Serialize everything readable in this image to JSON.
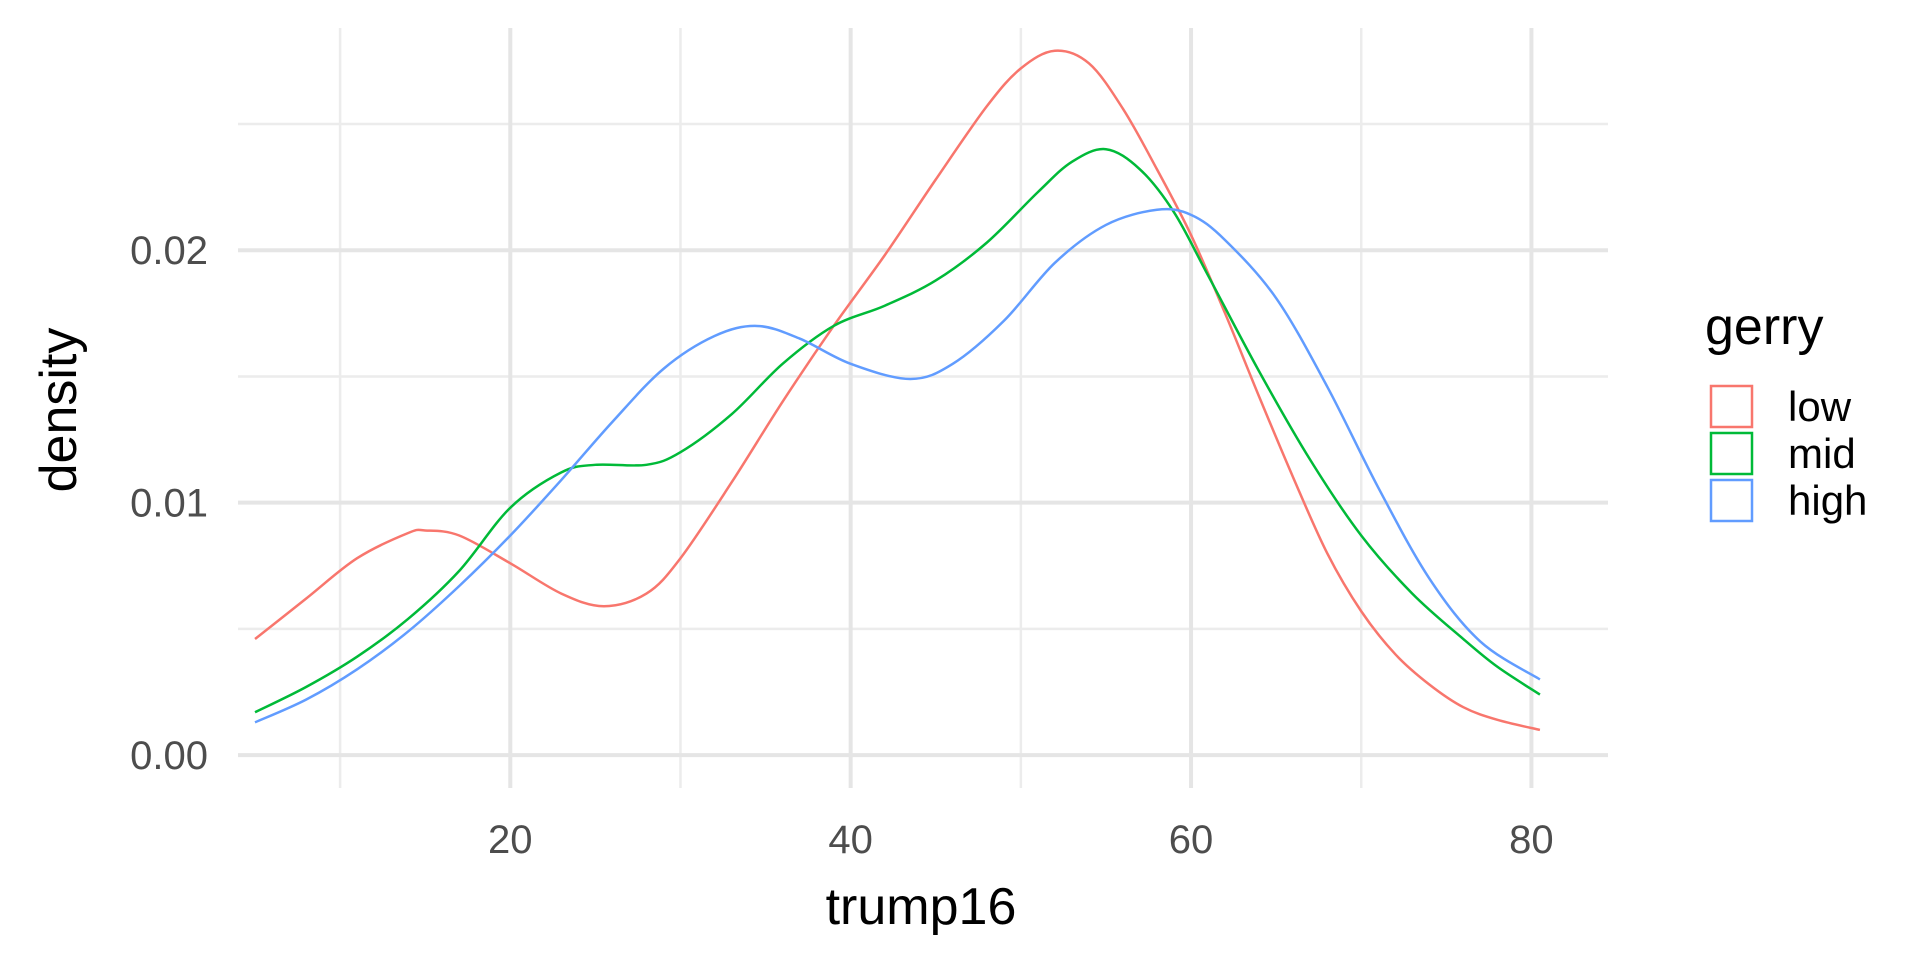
{
  "chart_data": {
    "type": "line",
    "subtype": "density",
    "title": "",
    "xlabel": "trump16",
    "ylabel": "density",
    "xlim": [
      4,
      84.5
    ],
    "ylim": [
      -0.0013,
      0.0288
    ],
    "x_ticks": [
      20,
      40,
      60,
      80
    ],
    "x_tick_labels": [
      "20",
      "40",
      "60",
      "80"
    ],
    "y_ticks": [
      0.0,
      0.01,
      0.02
    ],
    "y_tick_labels": [
      "0.00",
      "0.01",
      "0.02"
    ],
    "grid": true,
    "legend": {
      "title": "gerry",
      "position": "right"
    },
    "series": [
      {
        "name": "low",
        "color": "#F8766D",
        "x": [
          5,
          8,
          11,
          14,
          15,
          17,
          20,
          23,
          25.5,
          28,
          30,
          33,
          36,
          39,
          42,
          45,
          48,
          50,
          52,
          54,
          56,
          58,
          60,
          62,
          64,
          66,
          68,
          70,
          72,
          74,
          76,
          78,
          80.5
        ],
        "y": [
          0.0046,
          0.0062,
          0.0078,
          0.0088,
          0.0089,
          0.0087,
          0.0076,
          0.0064,
          0.0059,
          0.0064,
          0.0078,
          0.0108,
          0.014,
          0.017,
          0.0198,
          0.0228,
          0.0257,
          0.0272,
          0.0279,
          0.0274,
          0.0256,
          0.0232,
          0.0206,
          0.0175,
          0.0142,
          0.011,
          0.008,
          0.0057,
          0.004,
          0.0028,
          0.0019,
          0.0014,
          0.001
        ]
      },
      {
        "name": "mid",
        "color": "#00BA38",
        "x": [
          5,
          8,
          11,
          14,
          17,
          20,
          23,
          25,
          28,
          30,
          33,
          36,
          39,
          42,
          45,
          48,
          51,
          53,
          55,
          57,
          59,
          61,
          64,
          67,
          70,
          73,
          76,
          78,
          80.5
        ],
        "y": [
          0.0017,
          0.0027,
          0.0039,
          0.0054,
          0.0073,
          0.0098,
          0.0112,
          0.0115,
          0.0115,
          0.012,
          0.0135,
          0.0155,
          0.017,
          0.0178,
          0.0188,
          0.0203,
          0.0223,
          0.0235,
          0.024,
          0.0232,
          0.0215,
          0.019,
          0.0152,
          0.0117,
          0.0087,
          0.0064,
          0.0046,
          0.0035,
          0.0024
        ]
      },
      {
        "name": "high",
        "color": "#619CFF",
        "x": [
          5,
          8,
          11,
          14,
          17,
          20,
          23,
          26,
          29,
          32,
          34.5,
          37,
          40,
          43.5,
          46,
          49,
          52,
          55,
          58,
          60,
          62,
          65,
          68,
          71,
          74,
          77,
          80.5
        ],
        "y": [
          0.0013,
          0.0022,
          0.0034,
          0.0049,
          0.0067,
          0.0087,
          0.0109,
          0.0132,
          0.0153,
          0.0166,
          0.017,
          0.0165,
          0.0155,
          0.0149,
          0.0155,
          0.0172,
          0.0195,
          0.021,
          0.0216,
          0.0214,
          0.0204,
          0.0181,
          0.0146,
          0.0106,
          0.007,
          0.0045,
          0.003
        ]
      }
    ]
  }
}
